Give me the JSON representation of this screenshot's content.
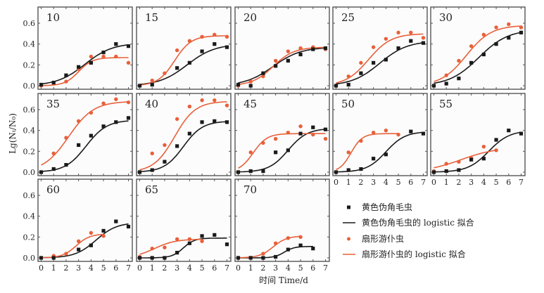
{
  "chart_data": {
    "type": "scatter",
    "layout": "small multiples, 3 rows x 5 columns (13 panels)",
    "xlabel": "时间 Time/d",
    "ylabel": "Lg(Nₜ/N₀)",
    "xlim": [
      0,
      7
    ],
    "ylim": [
      -0.02,
      0.76
    ],
    "x_ticks": [
      "0",
      "1",
      "2",
      "3",
      "4",
      "5",
      "6",
      "7"
    ],
    "y_ticks": [
      "0.0",
      "0.2",
      "0.4",
      "0.6"
    ],
    "colors": {
      "species_a": "#1a1a1a",
      "species_b": "#e8603a"
    },
    "legend": {
      "position": "bottom-right",
      "items": [
        {
          "label": "黄色伪角毛虫",
          "marker": "square",
          "color": "#1a1a1a"
        },
        {
          "label": "黄色伪角毛虫的 logistic 拟合",
          "marker": "line",
          "color": "#1a1a1a"
        },
        {
          "label": "扇形游仆虫",
          "marker": "circle",
          "color": "#e8603a"
        },
        {
          "label": "扇形游仆虫的 logistic 拟合",
          "marker": "line",
          "color": "#e8603a"
        }
      ]
    },
    "panels": [
      {
        "label": "10",
        "a": {
          "x": [
            0,
            1,
            2,
            3,
            4,
            5,
            6,
            7
          ],
          "y": [
            0.01,
            0.03,
            0.1,
            0.18,
            0.22,
            0.32,
            0.4,
            0.38
          ],
          "fit": {
            "K": 0.41,
            "r": 0.9,
            "t0": 3.5,
            "range": [
              0,
              7
            ]
          }
        },
        "b": {
          "x": [
            0,
            1,
            2,
            3,
            4,
            5,
            6,
            7
          ],
          "y": [
            0.0,
            0.03,
            0.04,
            0.16,
            0.28,
            0.28,
            0.28,
            0.22
          ],
          "fit": {
            "K": 0.27,
            "r": 1.8,
            "t0": 3.0,
            "range": [
              0,
              7
            ]
          }
        }
      },
      {
        "label": "15",
        "a": {
          "x": [
            0,
            1,
            3,
            4,
            5,
            6,
            7
          ],
          "y": [
            0.0,
            0.01,
            0.17,
            0.22,
            0.33,
            0.4,
            0.37
          ],
          "fit": {
            "K": 0.4,
            "r": 0.9,
            "t0": 3.8,
            "range": [
              0,
              7
            ]
          }
        },
        "b": {
          "x": [
            0,
            1,
            2,
            3,
            4,
            5,
            6,
            7
          ],
          "y": [
            0.0,
            0.05,
            0.12,
            0.34,
            0.43,
            0.47,
            0.49,
            0.47
          ],
          "fit": {
            "K": 0.48,
            "r": 1.5,
            "t0": 2.8,
            "range": [
              0,
              7
            ]
          }
        }
      },
      {
        "label": "20",
        "a": {
          "x": [
            0,
            1,
            2,
            3,
            4,
            5,
            6,
            7
          ],
          "y": [
            0.01,
            0.0,
            0.12,
            0.19,
            0.24,
            0.3,
            0.35,
            0.36
          ],
          "fit": {
            "K": 0.37,
            "r": 0.9,
            "t0": 2.8,
            "range": [
              0,
              7
            ]
          }
        },
        "b": {
          "x": [
            0,
            1,
            2,
            3,
            4,
            5,
            6,
            7
          ],
          "y": [
            0.0,
            0.04,
            0.09,
            0.24,
            0.33,
            0.36,
            0.37,
            0.35
          ],
          "fit": {
            "K": 0.37,
            "r": 1.2,
            "t0": 2.8,
            "range": [
              0,
              7
            ]
          }
        }
      },
      {
        "label": "25",
        "a": {
          "x": [
            0,
            1,
            2,
            3,
            4,
            5,
            6,
            7
          ],
          "y": [
            0.0,
            0.01,
            0.12,
            0.22,
            0.25,
            0.36,
            0.43,
            0.41
          ],
          "fit": {
            "K": 0.43,
            "r": 0.9,
            "t0": 3.5,
            "range": [
              0,
              7
            ]
          }
        },
        "b": {
          "x": [
            0,
            1,
            2,
            3,
            4,
            5,
            6,
            7
          ],
          "y": [
            0.0,
            0.09,
            0.22,
            0.37,
            0.45,
            0.51,
            0.51,
            0.46
          ],
          "fit": {
            "K": 0.5,
            "r": 1.1,
            "t0": 2.6,
            "range": [
              0,
              7
            ]
          }
        }
      },
      {
        "label": "30",
        "a": {
          "x": [
            0,
            1,
            2,
            3,
            4,
            5,
            6,
            7
          ],
          "y": [
            0.0,
            0.02,
            0.07,
            0.22,
            0.3,
            0.4,
            0.46,
            0.51
          ],
          "fit": {
            "K": 0.54,
            "r": 0.85,
            "t0": 3.6,
            "range": [
              0,
              7
            ]
          }
        },
        "b": {
          "x": [
            0,
            1,
            2,
            3,
            4,
            5,
            6,
            7
          ],
          "y": [
            0.0,
            0.1,
            0.24,
            0.38,
            0.49,
            0.56,
            0.59,
            0.56
          ],
          "fit": {
            "K": 0.58,
            "r": 1.0,
            "t0": 2.6,
            "range": [
              0,
              7
            ]
          }
        }
      },
      {
        "label": "35",
        "a": {
          "x": [
            0,
            1,
            2,
            3,
            4,
            5,
            6,
            7
          ],
          "y": [
            0.0,
            0.03,
            0.07,
            0.26,
            0.35,
            0.44,
            0.48,
            0.52
          ],
          "fit": {
            "K": 0.5,
            "r": 1.2,
            "t0": 3.6,
            "range": [
              0,
              7
            ]
          }
        },
        "b": {
          "x": [
            0,
            1,
            2,
            3,
            4,
            5,
            6,
            7
          ],
          "y": [
            0.0,
            0.18,
            0.33,
            0.49,
            0.57,
            0.66,
            0.7,
            0.67
          ],
          "fit": {
            "K": 0.68,
            "r": 1.0,
            "t0": 2.2,
            "range": [
              0,
              7
            ]
          }
        }
      },
      {
        "label": "40",
        "a": {
          "x": [
            0,
            1,
            2,
            3,
            4,
            5,
            6,
            7
          ],
          "y": [
            0.0,
            0.02,
            0.1,
            0.25,
            0.37,
            0.48,
            0.49,
            0.48
          ],
          "fit": {
            "K": 0.49,
            "r": 1.3,
            "t0": 3.5,
            "range": [
              0,
              7
            ]
          }
        },
        "b": {
          "x": [
            0,
            1,
            2,
            3,
            4,
            5,
            6,
            7
          ],
          "y": [
            0.0,
            0.18,
            0.26,
            0.51,
            0.63,
            0.69,
            0.69,
            0.64
          ],
          "fit": {
            "K": 0.68,
            "r": 1.2,
            "t0": 2.8,
            "range": [
              0,
              7
            ]
          }
        }
      },
      {
        "label": "45",
        "a": {
          "x": [
            0,
            1,
            2,
            3,
            4,
            5,
            6,
            7
          ],
          "y": [
            0.0,
            0.01,
            0.01,
            0.19,
            0.21,
            0.37,
            0.43,
            0.41
          ],
          "fit": {
            "K": 0.42,
            "r": 1.3,
            "t0": 4.0,
            "range": [
              0,
              7
            ]
          }
        },
        "b": {
          "x": [
            0,
            1,
            2,
            3,
            4,
            5,
            6,
            7
          ],
          "y": [
            0.0,
            0.19,
            0.28,
            0.32,
            0.38,
            0.44,
            0.36,
            0.32
          ],
          "fit": {
            "K": 0.37,
            "r": 1.8,
            "t0": 1.2,
            "range": [
              0,
              7
            ]
          }
        }
      },
      {
        "label": "50",
        "a": {
          "x": [
            0,
            1,
            2,
            3,
            4,
            6,
            7
          ],
          "y": [
            0.0,
            0.02,
            0.03,
            0.13,
            0.17,
            0.39,
            0.37
          ],
          "fit": {
            "K": 0.39,
            "r": 1.3,
            "t0": 4.0,
            "range": [
              0,
              7
            ]
          }
        },
        "b": {
          "x": [
            0,
            1,
            2,
            3,
            4,
            5
          ],
          "y": [
            0.0,
            0.19,
            0.3,
            0.38,
            0.4,
            0.36
          ],
          "fit": {
            "K": 0.37,
            "r": 2.2,
            "t0": 1.2,
            "range": [
              0,
              5
            ]
          }
        }
      },
      {
        "label": "55",
        "a": {
          "x": [
            0,
            1,
            2,
            3,
            4,
            5,
            6,
            7
          ],
          "y": [
            0.0,
            0.01,
            0.02,
            0.12,
            0.13,
            0.31,
            0.4,
            0.37
          ],
          "fit": {
            "K": 0.4,
            "r": 1.2,
            "t0": 4.4,
            "range": [
              0,
              7
            ]
          }
        },
        "b": {
          "x": [
            0,
            1,
            2,
            3,
            4,
            5
          ],
          "y": [
            0.01,
            0.08,
            0.1,
            0.135,
            0.245,
            0.21
          ],
          "fit": {
            "K": 0.24,
            "r": 0.7,
            "t0": 2.2,
            "range": [
              0,
              5
            ]
          }
        }
      },
      {
        "label": "60",
        "a": {
          "x": [
            0,
            1,
            3,
            4,
            5,
            6,
            7
          ],
          "y": [
            0.0,
            0.0,
            0.08,
            0.12,
            0.26,
            0.35,
            0.3
          ],
          "fit": {
            "K": 0.34,
            "r": 1.2,
            "t0": 4.4,
            "range": [
              0,
              7
            ]
          }
        },
        "b": {
          "x": [
            0,
            1,
            2,
            3,
            4,
            5
          ],
          "y": [
            0.0,
            0.02,
            0.04,
            0.16,
            0.24,
            0.21
          ],
          "fit": {
            "K": 0.23,
            "r": 1.8,
            "t0": 2.8,
            "range": [
              0,
              5
            ]
          }
        }
      },
      {
        "label": "65",
        "a": {
          "x": [
            0,
            1,
            2,
            3,
            4,
            5,
            6,
            7
          ],
          "y": [
            0.0,
            0.0,
            0.0,
            0.05,
            0.14,
            0.21,
            0.22,
            0.13
          ],
          "fit": {
            "K": 0.19,
            "r": 2.2,
            "t0": 3.5,
            "range": [
              0,
              7
            ]
          }
        },
        "b": {
          "x": [
            0,
            1,
            2,
            3,
            4,
            5
          ],
          "y": [
            0.01,
            0.09,
            0.1,
            0.18,
            0.18,
            0.16
          ],
          "fit": {
            "K": 0.18,
            "r": 1.2,
            "t0": 1.2,
            "range": [
              0,
              5
            ]
          }
        }
      },
      {
        "label": "70",
        "a": {
          "x": [
            0,
            1,
            2,
            3,
            4,
            5,
            6
          ],
          "y": [
            0.0,
            0.0,
            0.0,
            0.01,
            0.08,
            0.12,
            0.09
          ],
          "fit": {
            "K": 0.11,
            "r": 2.5,
            "t0": 3.7,
            "range": [
              0,
              6
            ]
          }
        },
        "b": {
          "x": [
            0,
            1,
            2,
            3,
            4,
            5
          ],
          "y": [
            0.0,
            0.0,
            0.04,
            0.14,
            0.19,
            0.2
          ],
          "fit": {
            "K": 0.21,
            "r": 1.8,
            "t0": 2.8,
            "range": [
              0,
              5
            ]
          }
        }
      }
    ]
  }
}
